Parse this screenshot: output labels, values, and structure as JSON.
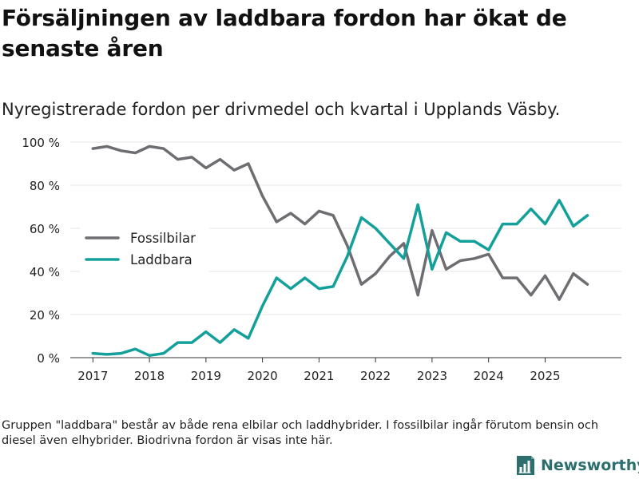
{
  "headline": "Försäljningen av laddbara fordon har ökat de senaste åren",
  "subtitle": "Nyregistrerade fordon per drivmedel och kvartal i Upplands Väsby.",
  "footnote": "Gruppen \"laddbara\" består av både rena elbilar och laddhybrider. I fossilbilar ingår förutom bensin och diesel även elhybrider. Biodrivna fordon är visas inte här.",
  "brand": {
    "name": "Newsworthy",
    "icon": "newsworthy-logo-icon"
  },
  "colors": {
    "fossil": "#6e6d72",
    "laddbara": "#14a09a",
    "grid": "#e4e4e4",
    "axis": "#333333",
    "brand": "#2d6e6e"
  },
  "chart_data": {
    "type": "line",
    "title": "Försäljningen av laddbara fordon har ökat de senaste åren",
    "subtitle": "Nyregistrerade fordon per drivmedel och kvartal i Upplands Väsby.",
    "xlabel": "",
    "ylabel": "",
    "x_ticks": [
      2017,
      2018,
      2019,
      2020,
      2021,
      2022,
      2023,
      2024,
      2025
    ],
    "xlim": [
      2016.6,
      2026.35
    ],
    "y_ticks": [
      0,
      20,
      40,
      60,
      80,
      100
    ],
    "y_tick_labels": [
      "0 %",
      "20 %",
      "40 %",
      "60 %",
      "80 %",
      "100 %"
    ],
    "ylim": [
      0,
      100
    ],
    "grid": true,
    "legend_position": "center-left",
    "x": [
      2017.0,
      2017.25,
      2017.5,
      2017.75,
      2018.0,
      2018.25,
      2018.5,
      2018.75,
      2019.0,
      2019.25,
      2019.5,
      2019.75,
      2020.0,
      2020.25,
      2020.5,
      2020.75,
      2021.0,
      2021.25,
      2021.5,
      2021.75,
      2022.0,
      2022.25,
      2022.5,
      2022.75,
      2023.0,
      2023.25,
      2023.5,
      2023.75,
      2024.0,
      2024.25,
      2024.5,
      2024.75,
      2025.0,
      2025.25,
      2025.5,
      2025.75
    ],
    "series": [
      {
        "name": "Fossilbilar",
        "color": "#6e6d72",
        "values": [
          97,
          98,
          96,
          95,
          98,
          97,
          92,
          93,
          88,
          92,
          87,
          90,
          75,
          63,
          67,
          62,
          68,
          66,
          52,
          34,
          39,
          47,
          53,
          29,
          59,
          41,
          45,
          46,
          48,
          37,
          37,
          29,
          38,
          27,
          39,
          34
        ]
      },
      {
        "name": "Laddbara",
        "color": "#14a09a",
        "values": [
          2,
          1.5,
          2,
          4,
          1,
          2,
          7,
          7,
          12,
          7,
          13,
          9,
          24,
          37,
          32,
          37,
          32,
          33,
          47,
          65,
          60,
          53,
          46,
          71,
          41,
          58,
          54,
          54,
          50,
          62,
          62,
          69,
          62,
          73,
          61,
          66
        ]
      }
    ]
  }
}
